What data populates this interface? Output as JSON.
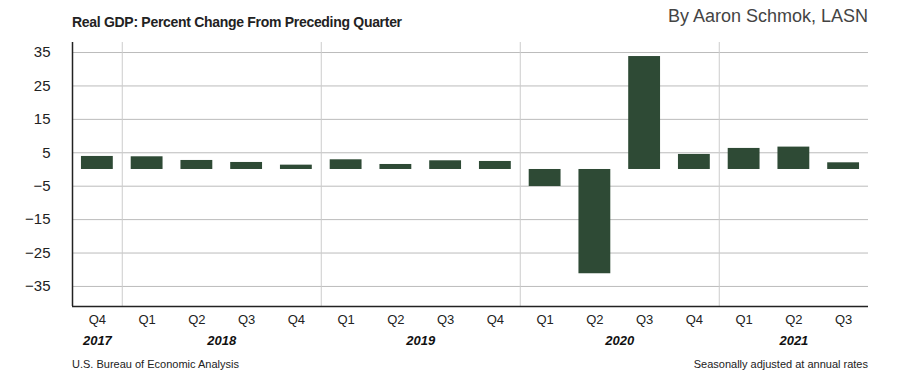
{
  "chart_data": {
    "type": "bar",
    "title": "Real GDP: Percent Change From Preceding Quarter",
    "byline": "By Aaron Schmok, LASN",
    "source": "U.S. Bureau of Economic Analysis",
    "note": "Seasonally adjusted at annual rates",
    "categories": [
      "Q4",
      "Q1",
      "Q2",
      "Q3",
      "Q4",
      "Q1",
      "Q2",
      "Q3",
      "Q4",
      "Q1",
      "Q2",
      "Q3",
      "Q4",
      "Q1",
      "Q2",
      "Q3"
    ],
    "years": [
      "2017",
      "2018",
      "2018",
      "2018",
      "2018",
      "2019",
      "2019",
      "2019",
      "2019",
      "2020",
      "2020",
      "2020",
      "2020",
      "2021",
      "2021",
      "2021"
    ],
    "values": [
      3.9,
      3.8,
      2.7,
      2.1,
      1.3,
      2.9,
      1.5,
      2.6,
      2.4,
      -5.1,
      -31.2,
      33.8,
      4.5,
      6.3,
      6.7,
      2.0
    ],
    "color": "#2e4a35",
    "ylim": [
      -41,
      38
    ],
    "yticks": [
      35,
      25,
      15,
      5,
      -5,
      -15,
      -25,
      -35
    ],
    "grid": true
  }
}
